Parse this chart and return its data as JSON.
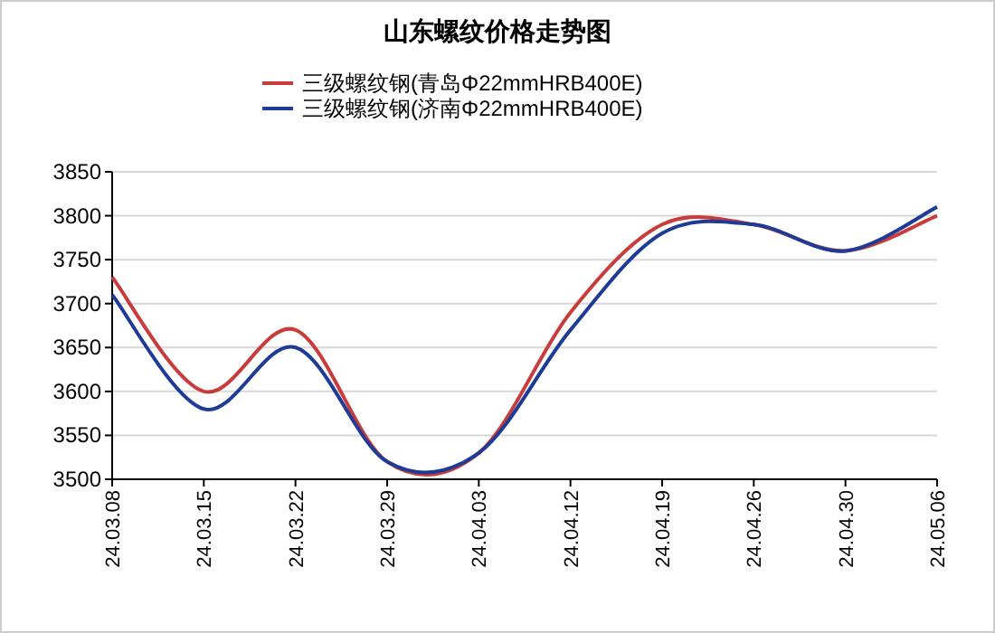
{
  "chart_data": {
    "type": "line",
    "title": "山东螺纹价格走势图",
    "categories": [
      "24.03.08",
      "24.03.15",
      "24.03.22",
      "24.03.29",
      "24.04.03",
      "24.04.12",
      "24.04.19",
      "24.04.26",
      "24.04.30",
      "24.05.06"
    ],
    "series": [
      {
        "name": "三级螺纹钢(青岛Φ22mmHRB400E)",
        "color": "#c83c3c",
        "values": [
          3730,
          3600,
          3670,
          3520,
          3530,
          3690,
          3790,
          3790,
          3760,
          3800
        ]
      },
      {
        "name": "三级螺纹钢(济南Φ22mmHRB400E)",
        "color": "#1e3c96",
        "values": [
          3710,
          3580,
          3650,
          3520,
          3530,
          3670,
          3780,
          3790,
          3760,
          3810
        ]
      }
    ],
    "ylim": [
      3500,
      3850
    ],
    "yticks": [
      3500,
      3550,
      3600,
      3650,
      3700,
      3750,
      3800,
      3850
    ],
    "grid": "y",
    "legend": "top",
    "marker": "none",
    "line_style": "solid"
  }
}
